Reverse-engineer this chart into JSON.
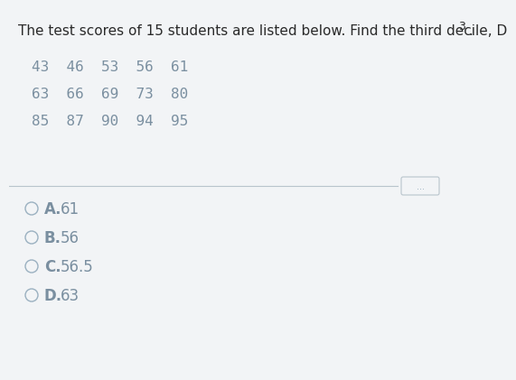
{
  "title_main": "The test scores of 15 students are listed below. Find the third decile, D",
  "title_sub": "3",
  "title_after": " .",
  "data_rows": [
    "43  46  53  56  61",
    "63  66  69  73  80",
    "85  87  90  94  95"
  ],
  "options": [
    {
      "letter": "A.",
      "value": "61"
    },
    {
      "letter": "B.",
      "value": "56"
    },
    {
      "letter": "C.",
      "value": "56.5"
    },
    {
      "letter": "D.",
      "value": "63"
    }
  ],
  "bg_color": "#f2f4f6",
  "text_color": "#7a8fa0",
  "title_color": "#2a2a2a",
  "divider_color": "#b8c4cc",
  "circle_color": "#9ab0c0",
  "dots_color": "#9ab0c0",
  "title_fontsize": 11.0,
  "data_fontsize": 11.5,
  "option_fontsize": 12.0
}
